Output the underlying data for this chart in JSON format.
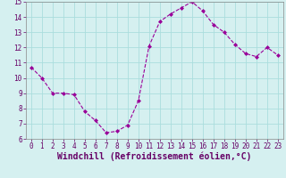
{
  "x": [
    0,
    1,
    2,
    3,
    4,
    5,
    6,
    7,
    8,
    9,
    10,
    11,
    12,
    13,
    14,
    15,
    16,
    17,
    18,
    19,
    20,
    21,
    22,
    23
  ],
  "y": [
    10.7,
    10.0,
    9.0,
    9.0,
    8.9,
    7.8,
    7.2,
    6.4,
    6.5,
    6.9,
    8.5,
    12.1,
    13.7,
    14.2,
    14.6,
    15.0,
    14.4,
    13.5,
    13.0,
    12.2,
    11.6,
    11.4,
    12.0,
    11.5
  ],
  "xlim": [
    -0.5,
    23.5
  ],
  "ylim": [
    6,
    15
  ],
  "yticks": [
    6,
    7,
    8,
    9,
    10,
    11,
    12,
    13,
    14,
    15
  ],
  "xticks": [
    0,
    1,
    2,
    3,
    4,
    5,
    6,
    7,
    8,
    9,
    10,
    11,
    12,
    13,
    14,
    15,
    16,
    17,
    18,
    19,
    20,
    21,
    22,
    23
  ],
  "xlabel": "Windchill (Refroidissement éolien,°C)",
  "line_color": "#990099",
  "marker": "D",
  "marker_size": 2.0,
  "bg_color": "#d5f0f0",
  "grid_color": "#aadddd",
  "tick_label_fontsize": 5.5,
  "xlabel_fontsize": 7.0
}
